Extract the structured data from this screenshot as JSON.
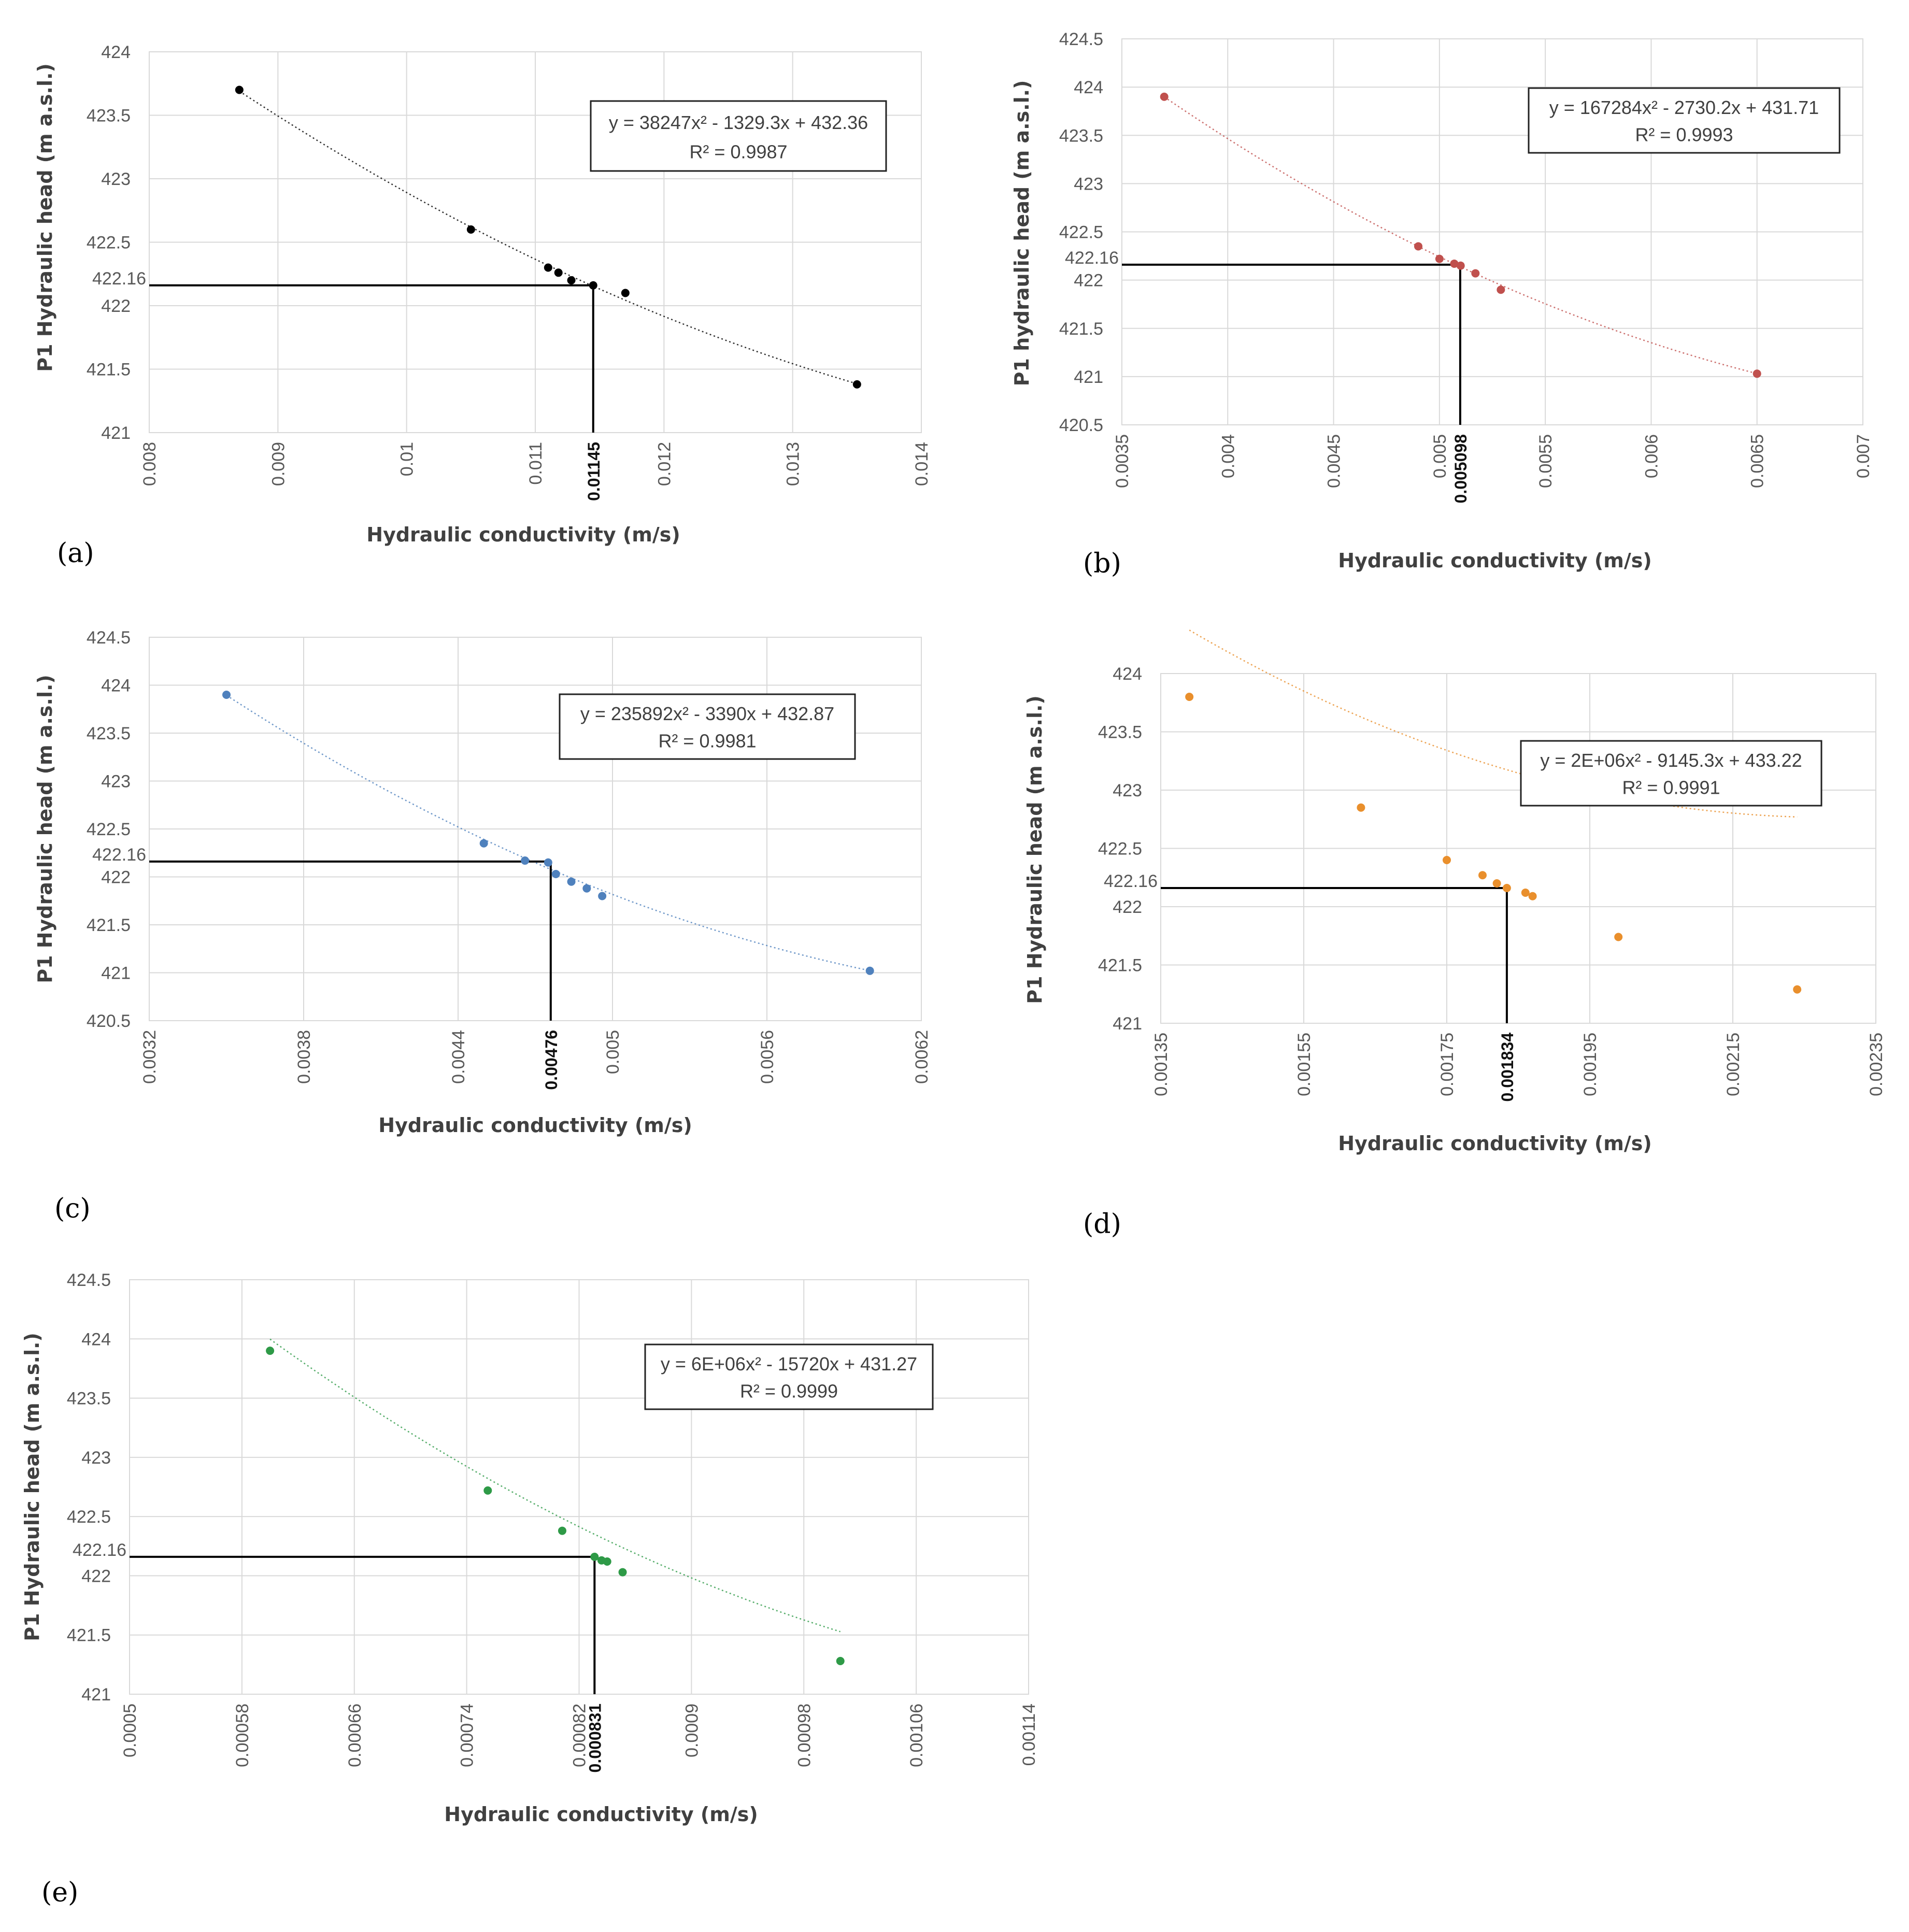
{
  "chart_data": [
    {
      "type": "scatter",
      "panel_label": "(a)",
      "xlabel": "Hydraulic conductivity  (m/s)",
      "ylabel": "P1 Hydraulic head (m a.s.l.)",
      "xlim": [
        0.008,
        0.014
      ],
      "ylim": [
        421,
        424
      ],
      "x_ticks": [
        "0.008",
        "0.009",
        "0.01",
        "0.011",
        "0.012",
        "0.013",
        "0.014"
      ],
      "y_ticks": [
        "421",
        "421.5",
        "422",
        "422.5",
        "423",
        "423.5",
        "424"
      ],
      "marker_x": 0.01145,
      "marker_x_label": "0.01145",
      "marker_y": 422.16,
      "marker_y_label": "422.16",
      "color": "#000000",
      "points": [
        [
          0.0087,
          423.7
        ],
        [
          0.0105,
          422.6
        ],
        [
          0.0111,
          422.3
        ],
        [
          0.01118,
          422.26
        ],
        [
          0.01128,
          422.2
        ],
        [
          0.01145,
          422.16
        ],
        [
          0.0117,
          422.1
        ],
        [
          0.0135,
          421.38
        ]
      ],
      "fit": {
        "a": 38247,
        "b": -1329.3,
        "c": 432.36,
        "x_range": [
          0.0087,
          0.0135
        ]
      },
      "equation": "y = 38247x² - 1329.3x + 432.36",
      "r2": "R² = 0.9987"
    },
    {
      "type": "scatter",
      "panel_label": "(b)",
      "xlabel": "Hydraulic conductivity  (m/s)",
      "ylabel": "P1 hydraulic head (m a.s.l.)",
      "xlim": [
        0.0035,
        0.007
      ],
      "ylim": [
        420.5,
        424.5
      ],
      "x_ticks": [
        "0.0035",
        "0.004",
        "0.0045",
        "0.005",
        "0.0055",
        "0.006",
        "0.0065",
        "0.007"
      ],
      "y_ticks": [
        "420.5",
        "421",
        "421.5",
        "422",
        "422.5",
        "423",
        "423.5",
        "424",
        "424.5"
      ],
      "marker_x": 0.005098,
      "marker_x_label": "0.005098",
      "marker_y": 422.16,
      "marker_y_label": "422.16",
      "color": "#c0504d",
      "points": [
        [
          0.0037,
          423.9
        ],
        [
          0.0049,
          422.35
        ],
        [
          0.005,
          422.22
        ],
        [
          0.00507,
          422.17
        ],
        [
          0.0051,
          422.15
        ],
        [
          0.00517,
          422.07
        ],
        [
          0.00529,
          421.9
        ],
        [
          0.0065,
          421.03
        ]
      ],
      "fit": {
        "a": 167284,
        "b": -2730.2,
        "c": 431.71,
        "x_range": [
          0.0037,
          0.0065
        ]
      },
      "equation": "y = 167284x² - 2730.2x + 431.71",
      "r2": "R² = 0.9993"
    },
    {
      "type": "scatter",
      "panel_label": "(c)",
      "xlabel": "Hydraulic conductivity  (m/s)",
      "ylabel": "P1 Hydraulic  head (m a.s.l.)",
      "xlim": [
        0.0032,
        0.0062
      ],
      "ylim": [
        420.5,
        424.5
      ],
      "x_ticks": [
        "0.0032",
        "0.0038",
        "0.0044",
        "0.005",
        "0.0056",
        "0.0062"
      ],
      "y_ticks": [
        "420.5",
        "421",
        "421.5",
        "422",
        "422.5",
        "423",
        "423.5",
        "424",
        "424.5"
      ],
      "marker_x": 0.00476,
      "marker_x_label": "0.00476",
      "marker_y": 422.16,
      "marker_y_label": "422.16",
      "color": "#4f81bd",
      "points": [
        [
          0.0035,
          423.9
        ],
        [
          0.0045,
          422.35
        ],
        [
          0.00466,
          422.17
        ],
        [
          0.00475,
          422.15
        ],
        [
          0.00478,
          422.03
        ],
        [
          0.00484,
          421.95
        ],
        [
          0.0049,
          421.88
        ],
        [
          0.00496,
          421.8
        ],
        [
          0.006,
          421.02
        ]
      ],
      "fit": {
        "a": 235892,
        "b": -3390,
        "c": 432.87,
        "x_range": [
          0.0035,
          0.006
        ]
      },
      "equation": "y = 235892x² - 3390x + 432.87",
      "r2": "R² = 0.9981"
    },
    {
      "type": "scatter",
      "panel_label": "(d)",
      "xlabel": "Hydraulic conductivity  (m/s)",
      "ylabel": "P1 Hydraulic  head  (m a.s.l.)",
      "xlim": [
        0.00135,
        0.00235
      ],
      "ylim": [
        421,
        424
      ],
      "x_ticks": [
        "0.00135",
        "0.00155",
        "0.00175",
        "0.00195",
        "0.00215",
        "0.00235"
      ],
      "y_ticks": [
        "421",
        "421.5",
        "422",
        "422.5",
        "423",
        "423.5",
        "424"
      ],
      "marker_x": 0.001834,
      "marker_x_label": "0.001834",
      "marker_y": 422.16,
      "marker_y_label": "422.16",
      "color": "#e98f2c",
      "points": [
        [
          0.00139,
          423.8
        ],
        [
          0.00163,
          422.85
        ],
        [
          0.00175,
          422.4
        ],
        [
          0.0018,
          422.27
        ],
        [
          0.00182,
          422.2
        ],
        [
          0.001834,
          422.16
        ],
        [
          0.00186,
          422.12
        ],
        [
          0.00187,
          422.09
        ],
        [
          0.00199,
          421.74
        ],
        [
          0.00224,
          421.29
        ]
      ],
      "fit": {
        "a": 2000000,
        "b": -9145.3,
        "c": 433.22,
        "x_range": [
          0.00139,
          0.00224
        ]
      },
      "equation": "y = 2E+06x² - 9145.3x + 433.22",
      "r2": "R² = 0.9991"
    },
    {
      "type": "scatter",
      "panel_label": "(e)",
      "xlabel": "Hydraulic conductivity  (m/s)",
      "ylabel": "P1 Hydraulic head (m a.s.l.)",
      "xlim": [
        0.0005,
        0.00114
      ],
      "ylim": [
        421,
        424.5
      ],
      "x_ticks": [
        "0.0005",
        "0.00058",
        "0.00066",
        "0.00074",
        "0.00082",
        "0.0009",
        "0.00098",
        "0.00106",
        "0.00114"
      ],
      "y_ticks": [
        "421",
        "421.5",
        "422",
        "422.5",
        "423",
        "423.5",
        "424",
        "424.5"
      ],
      "marker_x": 0.000831,
      "marker_x_label": "0.000831",
      "marker_y": 422.16,
      "marker_y_label": "422.16",
      "color": "#2e9a47",
      "points": [
        [
          0.0006,
          423.9
        ],
        [
          0.000755,
          422.72
        ],
        [
          0.000808,
          422.38
        ],
        [
          0.000831,
          422.16
        ],
        [
          0.000836,
          422.13
        ],
        [
          0.00084,
          422.12
        ],
        [
          0.000851,
          422.03
        ],
        [
          0.001006,
          421.28
        ]
      ],
      "fit": {
        "a": 6000000,
        "b": -15720,
        "c": 431.27,
        "x_range": [
          0.0006,
          0.001006
        ]
      },
      "equation": "y = 6E+06x² - 15720x + 431.27",
      "r2": "R² = 0.9999"
    }
  ]
}
